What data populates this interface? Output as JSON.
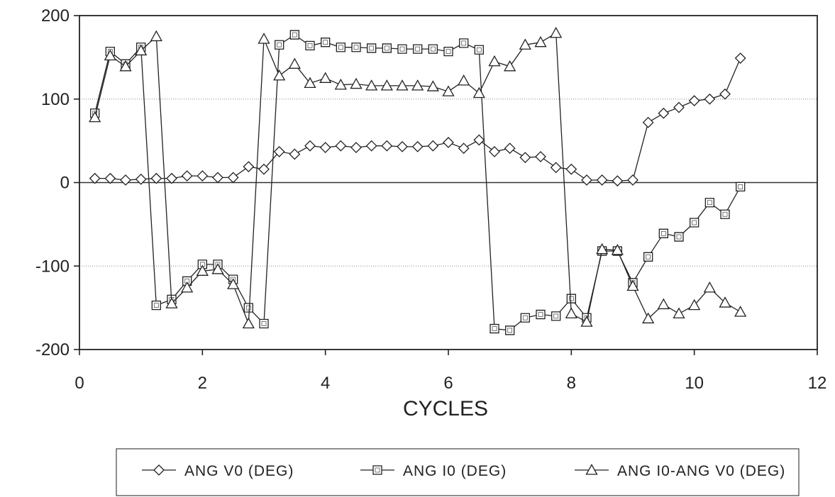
{
  "chart_data": {
    "type": "line",
    "title": "",
    "xlabel": "CYCLES",
    "ylabel": "",
    "xlim": [
      0,
      12
    ],
    "ylim": [
      -200,
      200
    ],
    "xticks": [
      0,
      2,
      4,
      6,
      8,
      10,
      12
    ],
    "yticks": [
      200,
      100,
      0,
      -100,
      -200
    ],
    "ytick_labels": [
      "200",
      "100",
      "0",
      "-100",
      "-200"
    ],
    "grid": "horizontal-dotted",
    "legend_position": "bottom",
    "series": [
      {
        "name": "ANG V0 (DEG)",
        "marker": "diamond",
        "x": [
          0.25,
          0.5,
          0.75,
          1.0,
          1.25,
          1.5,
          1.75,
          2.0,
          2.25,
          2.5,
          2.75,
          3.0,
          3.25,
          3.5,
          3.75,
          4.0,
          4.25,
          4.5,
          4.75,
          5.0,
          5.25,
          5.5,
          5.75,
          6.0,
          6.25,
          6.5,
          6.75,
          7.0,
          7.25,
          7.5,
          7.75,
          8.0,
          8.25,
          8.5,
          8.75,
          9.0,
          9.25,
          9.5,
          9.75,
          10.0,
          10.25,
          10.5,
          10.75
        ],
        "y": [
          5,
          5,
          3,
          4,
          5,
          5,
          8,
          8,
          6,
          6,
          19,
          16,
          37,
          34,
          44,
          42,
          44,
          42,
          44,
          44,
          43,
          43,
          44,
          48,
          41,
          51,
          37,
          41,
          30,
          31,
          18,
          16,
          3,
          3,
          2,
          3,
          72,
          83,
          90,
          98,
          100,
          106,
          149
        ]
      },
      {
        "name": "ANG I0 (DEG)",
        "marker": "square",
        "x": [
          0.25,
          0.5,
          0.75,
          1.0,
          1.25,
          1.5,
          1.75,
          2.0,
          2.25,
          2.5,
          2.75,
          3.0,
          3.25,
          3.5,
          3.75,
          4.0,
          4.25,
          4.5,
          4.75,
          5.0,
          5.25,
          5.5,
          5.75,
          6.0,
          6.25,
          6.5,
          6.75,
          7.0,
          7.25,
          7.5,
          7.75,
          8.0,
          8.25,
          8.5,
          8.75,
          9.0,
          9.25,
          9.5,
          9.75,
          10.0,
          10.25,
          10.5,
          10.75
        ],
        "y": [
          83,
          157,
          142,
          162,
          -147,
          -140,
          -118,
          -98,
          -98,
          -116,
          -150,
          -169,
          165,
          177,
          164,
          168,
          162,
          162,
          161,
          161,
          160,
          160,
          160,
          157,
          167,
          159,
          -175,
          -177,
          -162,
          -158,
          -160,
          -139,
          -162,
          -82,
          -82,
          -120,
          -89,
          -61,
          -65,
          -48,
          -24,
          -38,
          -5
        ]
      },
      {
        "name": "ANG I0-ANG V0 (DEG)",
        "marker": "triangle",
        "x": [
          0.25,
          0.5,
          0.75,
          1.0,
          1.25,
          1.5,
          1.75,
          2.0,
          2.25,
          2.5,
          2.75,
          3.0,
          3.25,
          3.5,
          3.75,
          4.0,
          4.25,
          4.5,
          4.75,
          5.0,
          5.25,
          5.5,
          5.75,
          6.0,
          6.25,
          6.5,
          6.75,
          7.0,
          7.25,
          7.5,
          7.75,
          8.0,
          8.25,
          8.5,
          8.75,
          9.0,
          9.25,
          9.5,
          9.75,
          10.0,
          10.25,
          10.5,
          10.75
        ],
        "y": [
          78,
          152,
          139,
          158,
          175,
          -145,
          -126,
          -106,
          -104,
          -122,
          -169,
          172,
          128,
          142,
          119,
          125,
          117,
          118,
          116,
          116,
          116,
          116,
          115,
          109,
          122,
          107,
          145,
          139,
          165,
          168,
          179,
          -157,
          -167,
          -80,
          -81,
          -124,
          -163,
          -146,
          -157,
          -147,
          -126,
          -144,
          -155
        ]
      }
    ]
  }
}
